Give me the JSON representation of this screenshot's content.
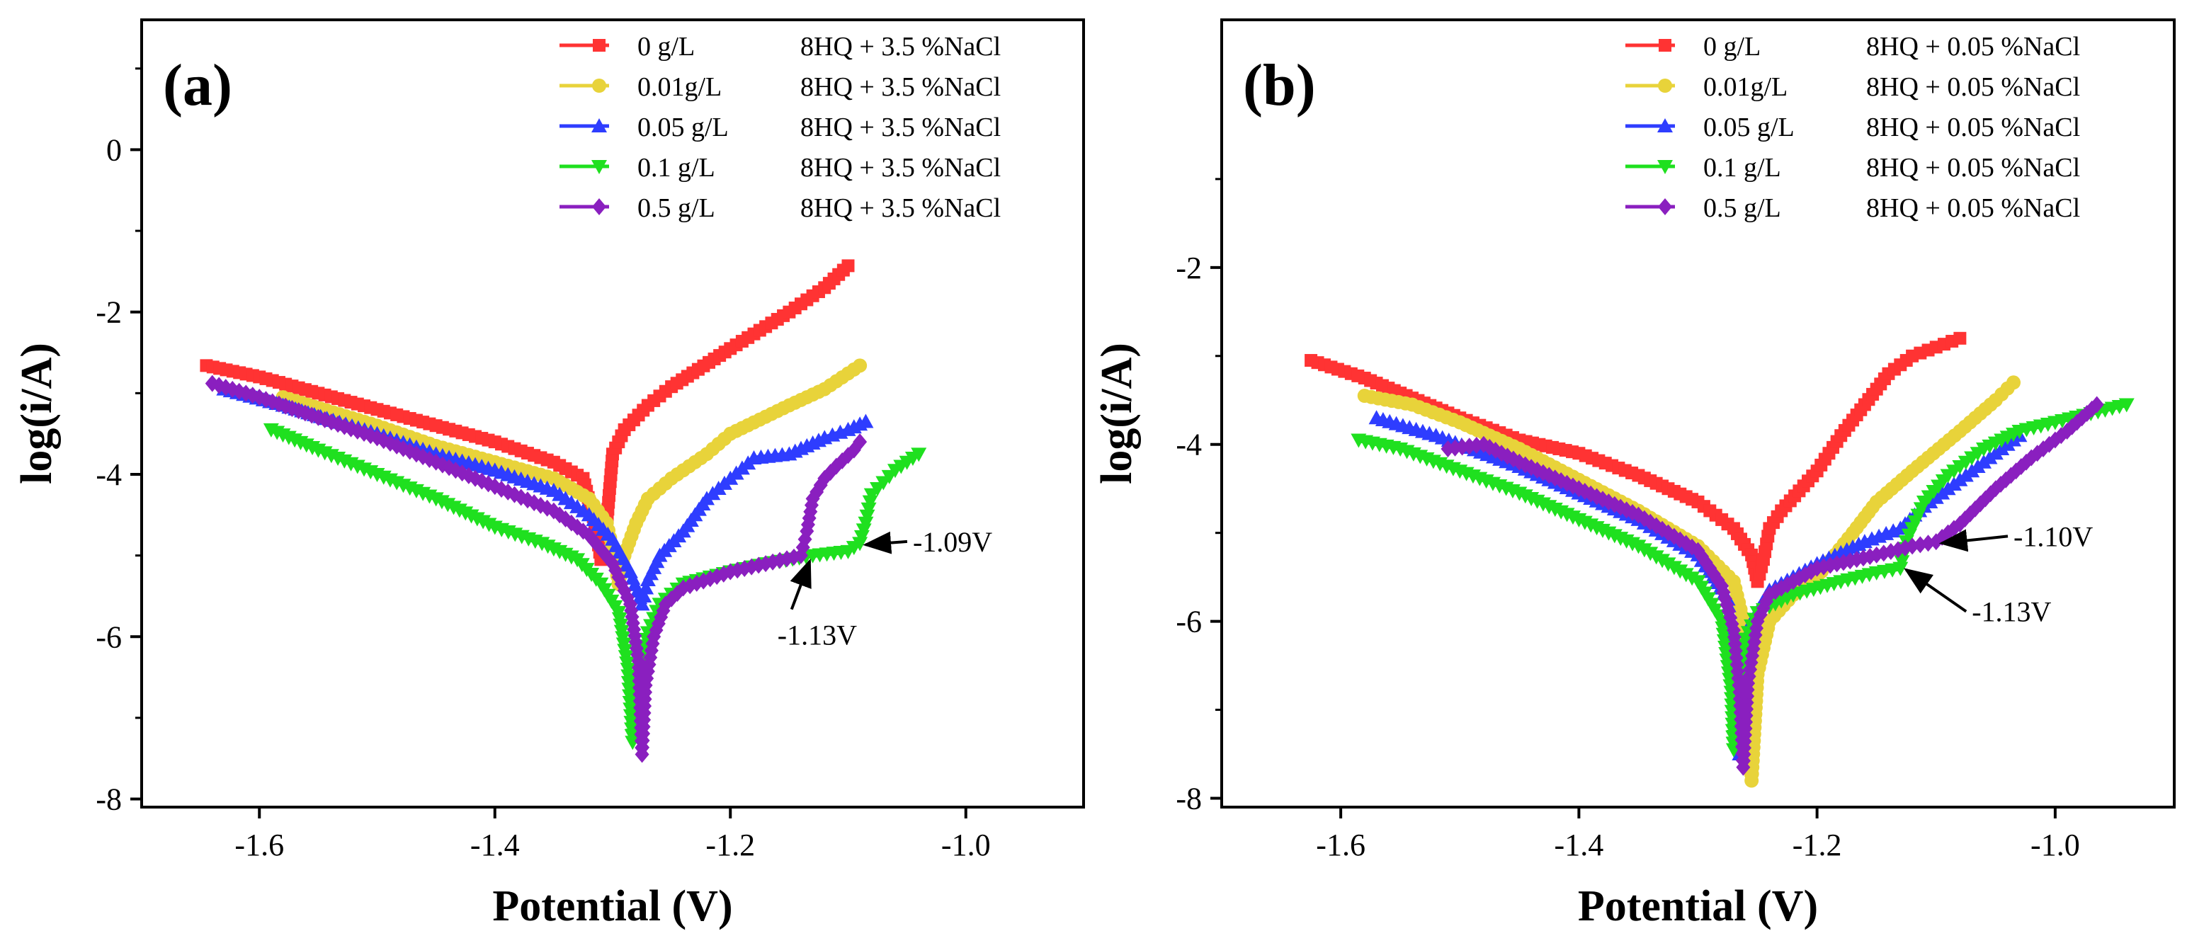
{
  "chart_data": [
    {
      "type": "line",
      "panel_label": "(a)",
      "xlabel": "Potential (V)",
      "ylabel": "log(i/A)",
      "xlim": [
        -1.7,
        -0.9
      ],
      "ylim": [
        -8.1,
        1.6
      ],
      "xticks": [
        -1.6,
        -1.4,
        -1.2,
        -1.0
      ],
      "xtick_labels": [
        "-1.6",
        "-1.4",
        "-1.2",
        "-1.0"
      ],
      "yticks": [
        0,
        -2,
        -4,
        -6,
        -8
      ],
      "ytick_labels": [
        "0",
        "-2",
        "-4",
        "-6",
        "-8"
      ],
      "legend_position": "top-right",
      "series": [
        {
          "name": "0 g/L",
          "desc": "8HQ + 3.5 %NaCl",
          "color": "#ff3333",
          "marker": "square",
          "points": [
            [
              -1.645,
              -2.66
            ],
            [
              -1.6,
              -2.8
            ],
            [
              -1.55,
              -3.0
            ],
            [
              -1.5,
              -3.2
            ],
            [
              -1.45,
              -3.4
            ],
            [
              -1.4,
              -3.6
            ],
            [
              -1.35,
              -3.85
            ],
            [
              -1.325,
              -4.05
            ],
            [
              -1.315,
              -4.6
            ],
            [
              -1.31,
              -5.05
            ],
            [
              -1.305,
              -4.6
            ],
            [
              -1.3,
              -3.75
            ],
            [
              -1.29,
              -3.45
            ],
            [
              -1.27,
              -3.15
            ],
            [
              -1.25,
              -2.92
            ],
            [
              -1.2,
              -2.45
            ],
            [
              -1.15,
              -2.0
            ],
            [
              -1.12,
              -1.7
            ],
            [
              -1.1,
              -1.43
            ]
          ]
        },
        {
          "name": "0.01g/L",
          "desc": "8HQ + 3.5 %NaCl",
          "color": "#e8d33a",
          "marker": "circle",
          "points": [
            [
              -1.58,
              -3.05
            ],
            [
              -1.5,
              -3.4
            ],
            [
              -1.45,
              -3.65
            ],
            [
              -1.4,
              -3.85
            ],
            [
              -1.35,
              -4.05
            ],
            [
              -1.32,
              -4.3
            ],
            [
              -1.305,
              -4.6
            ],
            [
              -1.298,
              -5.05
            ],
            [
              -1.295,
              -5.35
            ],
            [
              -1.29,
              -5.0
            ],
            [
              -1.28,
              -4.6
            ],
            [
              -1.27,
              -4.3
            ],
            [
              -1.25,
              -4.05
            ],
            [
              -1.22,
              -3.75
            ],
            [
              -1.2,
              -3.5
            ],
            [
              -1.15,
              -3.15
            ],
            [
              -1.12,
              -2.95
            ],
            [
              -1.09,
              -2.66
            ]
          ]
        },
        {
          "name": "0.05 g/L",
          "desc": "8HQ + 3.5 %NaCl",
          "color": "#2e3dff",
          "marker": "triangle-up",
          "points": [
            [
              -1.63,
              -2.95
            ],
            [
              -1.58,
              -3.15
            ],
            [
              -1.5,
              -3.5
            ],
            [
              -1.45,
              -3.75
            ],
            [
              -1.4,
              -3.95
            ],
            [
              -1.35,
              -4.2
            ],
            [
              -1.32,
              -4.5
            ],
            [
              -1.3,
              -4.8
            ],
            [
              -1.285,
              -5.2
            ],
            [
              -1.275,
              -5.6
            ],
            [
              -1.27,
              -5.3
            ],
            [
              -1.26,
              -5.0
            ],
            [
              -1.24,
              -4.7
            ],
            [
              -1.22,
              -4.3
            ],
            [
              -1.2,
              -4.05
            ],
            [
              -1.18,
              -3.8
            ],
            [
              -1.15,
              -3.75
            ],
            [
              -1.12,
              -3.55
            ],
            [
              -1.1,
              -3.45
            ],
            [
              -1.085,
              -3.35
            ]
          ]
        },
        {
          "name": "0.1 g/L",
          "desc": "8HQ + 3.5 %NaCl",
          "color": "#1fe01f",
          "marker": "triangle-down",
          "points": [
            [
              -1.59,
              -3.45
            ],
            [
              -1.55,
              -3.7
            ],
            [
              -1.5,
              -4.0
            ],
            [
              -1.45,
              -4.3
            ],
            [
              -1.4,
              -4.65
            ],
            [
              -1.36,
              -4.85
            ],
            [
              -1.33,
              -5.05
            ],
            [
              -1.31,
              -5.35
            ],
            [
              -1.295,
              -5.7
            ],
            [
              -1.287,
              -6.4
            ],
            [
              -1.283,
              -7.3
            ],
            [
              -1.279,
              -6.6
            ],
            [
              -1.27,
              -5.95
            ],
            [
              -1.26,
              -5.6
            ],
            [
              -1.24,
              -5.35
            ],
            [
              -1.2,
              -5.2
            ],
            [
              -1.17,
              -5.1
            ],
            [
              -1.13,
              -5.0
            ],
            [
              -1.1,
              -4.95
            ],
            [
              -1.09,
              -4.85
            ],
            [
              -1.085,
              -4.6
            ],
            [
              -1.08,
              -4.25
            ],
            [
              -1.07,
              -4.1
            ],
            [
              -1.06,
              -3.95
            ],
            [
              -1.05,
              -3.85
            ],
            [
              -1.04,
              -3.75
            ]
          ]
        },
        {
          "name": "0.5 g/L",
          "desc": "8HQ + 3.5 %NaCl",
          "color": "#8a1fbf",
          "marker": "diamond",
          "points": [
            [
              -1.64,
              -2.88
            ],
            [
              -1.6,
              -3.05
            ],
            [
              -1.55,
              -3.3
            ],
            [
              -1.5,
              -3.55
            ],
            [
              -1.45,
              -3.85
            ],
            [
              -1.4,
              -4.15
            ],
            [
              -1.35,
              -4.45
            ],
            [
              -1.32,
              -4.75
            ],
            [
              -1.3,
              -5.1
            ],
            [
              -1.285,
              -5.6
            ],
            [
              -1.278,
              -6.3
            ],
            [
              -1.275,
              -7.45
            ],
            [
              -1.272,
              -6.6
            ],
            [
              -1.265,
              -6.0
            ],
            [
              -1.255,
              -5.6
            ],
            [
              -1.24,
              -5.4
            ],
            [
              -1.2,
              -5.2
            ],
            [
              -1.17,
              -5.1
            ],
            [
              -1.14,
              -5.0
            ],
            [
              -1.135,
              -4.7
            ],
            [
              -1.13,
              -4.3
            ],
            [
              -1.12,
              -4.05
            ],
            [
              -1.11,
              -3.9
            ],
            [
              -1.095,
              -3.7
            ],
            [
              -1.09,
              -3.6
            ]
          ]
        }
      ],
      "annotations": [
        {
          "text": "-1.09V",
          "point": [
            -1.09,
            -4.85
          ],
          "text_at": [
            -1.045,
            -4.95
          ]
        },
        {
          "text": "-1.13V",
          "point": [
            -1.135,
            -5.0
          ],
          "text_at": [
            -1.16,
            -6.1
          ]
        }
      ]
    },
    {
      "type": "line",
      "panel_label": "(b)",
      "xlabel": "Potential (V)",
      "ylabel": "log(i/A)",
      "xlim": [
        -1.7,
        -0.9
      ],
      "ylim": [
        -8.1,
        0.8
      ],
      "xticks": [
        -1.6,
        -1.4,
        -1.2,
        -1.0
      ],
      "xtick_labels": [
        "-1.6",
        "-1.4",
        "-1.2",
        "-1.0"
      ],
      "yticks": [
        -2,
        -4,
        -6,
        -8
      ],
      "ytick_labels": [
        "-2",
        "-4",
        "-6",
        "-8"
      ],
      "legend_position": "top-right",
      "series": [
        {
          "name": "0 g/L",
          "desc": "8HQ + 0.05 %NaCl",
          "color": "#ff3333",
          "marker": "square",
          "points": [
            [
              -1.625,
              -3.05
            ],
            [
              -1.58,
              -3.25
            ],
            [
              -1.5,
              -3.7
            ],
            [
              -1.45,
              -3.95
            ],
            [
              -1.4,
              -4.1
            ],
            [
              -1.35,
              -4.35
            ],
            [
              -1.3,
              -4.65
            ],
            [
              -1.27,
              -4.95
            ],
            [
              -1.255,
              -5.25
            ],
            [
              -1.25,
              -5.55
            ],
            [
              -1.245,
              -5.3
            ],
            [
              -1.24,
              -4.95
            ],
            [
              -1.23,
              -4.75
            ],
            [
              -1.2,
              -4.3
            ],
            [
              -1.18,
              -3.9
            ],
            [
              -1.16,
              -3.55
            ],
            [
              -1.14,
              -3.2
            ],
            [
              -1.12,
              -3.0
            ],
            [
              -1.1,
              -2.9
            ],
            [
              -1.08,
              -2.8
            ]
          ]
        },
        {
          "name": "0.01g/L",
          "desc": "8HQ + 0.05 %NaCl",
          "color": "#e8d33a",
          "marker": "circle",
          "points": [
            [
              -1.58,
              -3.45
            ],
            [
              -1.54,
              -3.55
            ],
            [
              -1.5,
              -3.75
            ],
            [
              -1.45,
              -4.05
            ],
            [
              -1.4,
              -4.4
            ],
            [
              -1.35,
              -4.75
            ],
            [
              -1.3,
              -5.15
            ],
            [
              -1.27,
              -5.55
            ],
            [
              -1.26,
              -6.1
            ],
            [
              -1.255,
              -7.8
            ],
            [
              -1.25,
              -6.6
            ],
            [
              -1.24,
              -6.0
            ],
            [
              -1.22,
              -5.7
            ],
            [
              -1.2,
              -5.5
            ],
            [
              -1.17,
              -5.0
            ],
            [
              -1.15,
              -4.65
            ],
            [
              -1.12,
              -4.3
            ],
            [
              -1.08,
              -3.85
            ],
            [
              -1.05,
              -3.5
            ],
            [
              -1.035,
              -3.3
            ]
          ]
        },
        {
          "name": "0.05 g/L",
          "desc": "8HQ + 0.05 %NaCl",
          "color": "#2e3dff",
          "marker": "triangle-up",
          "points": [
            [
              -1.57,
              -3.7
            ],
            [
              -1.52,
              -3.9
            ],
            [
              -1.45,
              -4.25
            ],
            [
              -1.4,
              -4.55
            ],
            [
              -1.35,
              -4.85
            ],
            [
              -1.3,
              -5.25
            ],
            [
              -1.275,
              -5.75
            ],
            [
              -1.268,
              -6.5
            ],
            [
              -1.265,
              -7.5
            ],
            [
              -1.262,
              -6.6
            ],
            [
              -1.255,
              -6.0
            ],
            [
              -1.24,
              -5.65
            ],
            [
              -1.2,
              -5.35
            ],
            [
              -1.16,
              -5.1
            ],
            [
              -1.13,
              -4.95
            ],
            [
              -1.11,
              -4.7
            ],
            [
              -1.08,
              -4.4
            ],
            [
              -1.05,
              -4.1
            ],
            [
              -1.03,
              -3.9
            ]
          ]
        },
        {
          "name": "0.1 g/L",
          "desc": "8HQ + 0.05 %NaCl",
          "color": "#1fe01f",
          "marker": "triangle-down",
          "points": [
            [
              -1.585,
              -3.95
            ],
            [
              -1.55,
              -4.05
            ],
            [
              -1.5,
              -4.3
            ],
            [
              -1.45,
              -4.55
            ],
            [
              -1.4,
              -4.85
            ],
            [
              -1.35,
              -5.15
            ],
            [
              -1.3,
              -5.55
            ],
            [
              -1.28,
              -6.0
            ],
            [
              -1.272,
              -6.8
            ],
            [
              -1.27,
              -7.45
            ],
            [
              -1.267,
              -6.7
            ],
            [
              -1.26,
              -6.2
            ],
            [
              -1.25,
              -5.9
            ],
            [
              -1.22,
              -5.7
            ],
            [
              -1.18,
              -5.55
            ],
            [
              -1.15,
              -5.45
            ],
            [
              -1.13,
              -5.4
            ],
            [
              -1.125,
              -5.1
            ],
            [
              -1.11,
              -4.65
            ],
            [
              -1.09,
              -4.35
            ],
            [
              -1.06,
              -4.05
            ],
            [
              -1.03,
              -3.85
            ],
            [
              -1.0,
              -3.75
            ],
            [
              -0.97,
              -3.65
            ],
            [
              -0.94,
              -3.55
            ]
          ]
        },
        {
          "name": "0.5 g/L",
          "desc": "8HQ + 0.05 %NaCl",
          "color": "#8a1fbf",
          "marker": "diamond",
          "points": [
            [
              -1.51,
              -4.05
            ],
            [
              -1.48,
              -4.0
            ],
            [
              -1.45,
              -4.2
            ],
            [
              -1.4,
              -4.5
            ],
            [
              -1.35,
              -4.8
            ],
            [
              -1.3,
              -5.2
            ],
            [
              -1.28,
              -5.6
            ],
            [
              -1.27,
              -6.1
            ],
            [
              -1.265,
              -6.8
            ],
            [
              -1.262,
              -7.65
            ],
            [
              -1.258,
              -6.7
            ],
            [
              -1.25,
              -6.0
            ],
            [
              -1.24,
              -5.7
            ],
            [
              -1.2,
              -5.4
            ],
            [
              -1.15,
              -5.25
            ],
            [
              -1.12,
              -5.15
            ],
            [
              -1.1,
              -5.1
            ],
            [
              -1.08,
              -4.9
            ],
            [
              -1.05,
              -4.5
            ],
            [
              -1.02,
              -4.15
            ],
            [
              -0.99,
              -3.85
            ],
            [
              -0.965,
              -3.55
            ]
          ]
        }
      ],
      "annotations": [
        {
          "text": "-1.10V",
          "point": [
            -1.1,
            -5.1
          ],
          "text_at": [
            -1.035,
            -5.15
          ]
        },
        {
          "text": "-1.13V",
          "point": [
            -1.13,
            -5.4
          ],
          "text_at": [
            -1.07,
            -6.0
          ]
        }
      ]
    }
  ]
}
